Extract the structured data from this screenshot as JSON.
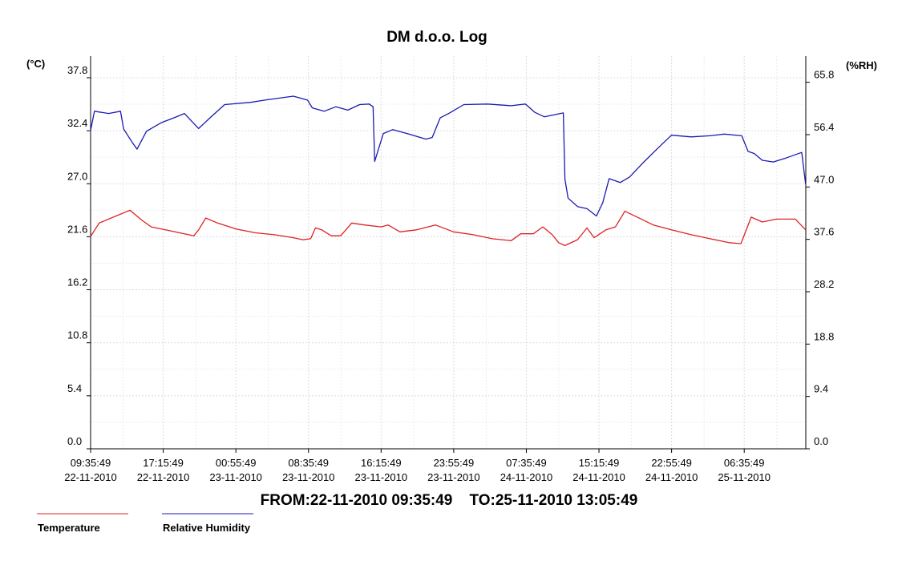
{
  "chart_data": {
    "type": "line",
    "title": "DM d.o.o. Log",
    "y_left_unit": "(°C)",
    "y_right_unit": "(%RH)",
    "ylim_left": [
      0.0,
      40.0
    ],
    "ylim_right": [
      0.0,
      70.5
    ],
    "y_left_ticks": [
      "0.0",
      "5.4",
      "10.8",
      "16.2",
      "21.6",
      "27.0",
      "32.4",
      "37.8"
    ],
    "y_right_ticks": [
      "0.0",
      "9.4",
      "18.8",
      "28.2",
      "37.6",
      "47.0",
      "56.4",
      "65.8"
    ],
    "x_range": [
      "22-11-2010 09:35:49",
      "25-11-2010 13:05:49"
    ],
    "x_ticks": [
      {
        "time": "09:35:49",
        "date": "22-11-2010"
      },
      {
        "time": "17:15:49",
        "date": "22-11-2010"
      },
      {
        "time": "00:55:49",
        "date": "23-11-2010"
      },
      {
        "time": "08:35:49",
        "date": "23-11-2010"
      },
      {
        "time": "16:15:49",
        "date": "23-11-2010"
      },
      {
        "time": "23:55:49",
        "date": "23-11-2010"
      },
      {
        "time": "07:35:49",
        "date": "24-11-2010"
      },
      {
        "time": "15:15:49",
        "date": "24-11-2010"
      },
      {
        "time": "22:55:49",
        "date": "24-11-2010"
      },
      {
        "time": "06:35:49",
        "date": "25-11-2010"
      }
    ],
    "grid": true,
    "range_text": "FROM:22-11-2010 09:35:49    TO:25-11-2010 13:05:49",
    "series": [
      {
        "name": "Temperature",
        "axis": "left",
        "color": "#dd2222",
        "points": [
          [
            "22-11-2010 09:35",
            21.6
          ],
          [
            "22-11-2010 10:30",
            23.0
          ],
          [
            "22-11-2010 12:00",
            23.6
          ],
          [
            "22-11-2010 13:45",
            24.3
          ],
          [
            "22-11-2010 15:00",
            23.3
          ],
          [
            "22-11-2010 16:00",
            22.6
          ],
          [
            "22-11-2010 17:30",
            22.3
          ],
          [
            "22-11-2010 19:00",
            22.0
          ],
          [
            "22-11-2010 20:30",
            21.7
          ],
          [
            "22-11-2010 21:00",
            22.3
          ],
          [
            "22-11-2010 21:45",
            23.5
          ],
          [
            "22-11-2010 23:00",
            23.0
          ],
          [
            "23-11-2010 00:55",
            22.4
          ],
          [
            "23-11-2010 03:00",
            22.0
          ],
          [
            "23-11-2010 05:00",
            21.8
          ],
          [
            "23-11-2010 07:00",
            21.5
          ],
          [
            "23-11-2010 08:00",
            21.3
          ],
          [
            "23-11-2010 08:50",
            21.4
          ],
          [
            "23-11-2010 09:20",
            22.5
          ],
          [
            "23-11-2010 10:00",
            22.3
          ],
          [
            "23-11-2010 11:00",
            21.7
          ],
          [
            "23-11-2010 12:00",
            21.7
          ],
          [
            "23-11-2010 13:10",
            23.0
          ],
          [
            "23-11-2010 14:30",
            22.8
          ],
          [
            "23-11-2010 16:15",
            22.6
          ],
          [
            "23-11-2010 17:00",
            22.8
          ],
          [
            "23-11-2010 18:15",
            22.1
          ],
          [
            "23-11-2010 20:00",
            22.3
          ],
          [
            "23-11-2010 22:00",
            22.8
          ],
          [
            "23-11-2010 23:55",
            22.1
          ],
          [
            "24-11-2010 02:00",
            21.8
          ],
          [
            "24-11-2010 04:00",
            21.4
          ],
          [
            "24-11-2010 06:00",
            21.2
          ],
          [
            "24-11-2010 07:00",
            21.9
          ],
          [
            "24-11-2010 08:20",
            21.9
          ],
          [
            "24-11-2010 09:20",
            22.6
          ],
          [
            "24-11-2010 10:20",
            21.8
          ],
          [
            "24-11-2010 11:00",
            21.0
          ],
          [
            "24-11-2010 11:40",
            20.7
          ],
          [
            "24-11-2010 13:00",
            21.3
          ],
          [
            "24-11-2010 14:00",
            22.5
          ],
          [
            "24-11-2010 14:45",
            21.5
          ],
          [
            "24-11-2010 16:00",
            22.3
          ],
          [
            "24-11-2010 17:00",
            22.6
          ],
          [
            "24-11-2010 18:00",
            24.2
          ],
          [
            "24-11-2010 19:30",
            23.5
          ],
          [
            "24-11-2010 21:00",
            22.8
          ],
          [
            "24-11-2010 22:55",
            22.3
          ],
          [
            "25-11-2010 01:00",
            21.8
          ],
          [
            "25-11-2010 03:00",
            21.4
          ],
          [
            "25-11-2010 05:00",
            21.0
          ],
          [
            "25-11-2010 06:15",
            20.9
          ],
          [
            "25-11-2010 07:20",
            23.6
          ],
          [
            "25-11-2010 08:30",
            23.1
          ],
          [
            "25-11-2010 10:00",
            23.4
          ],
          [
            "25-11-2010 12:00",
            23.4
          ],
          [
            "25-11-2010 13:05",
            22.3
          ]
        ]
      },
      {
        "name": "Relative Humidity",
        "axis": "right",
        "color": "#1a1ab3",
        "points": [
          [
            "22-11-2010 09:35",
            57.0
          ],
          [
            "22-11-2010 10:00",
            60.6
          ],
          [
            "22-11-2010 11:30",
            60.2
          ],
          [
            "22-11-2010 12:45",
            60.6
          ],
          [
            "22-11-2010 13:05",
            57.4
          ],
          [
            "22-11-2010 14:00",
            55.0
          ],
          [
            "22-11-2010 14:30",
            53.8
          ],
          [
            "22-11-2010 15:30",
            57.0
          ],
          [
            "22-11-2010 17:00",
            58.5
          ],
          [
            "22-11-2010 18:30",
            59.5
          ],
          [
            "22-11-2010 19:30",
            60.2
          ],
          [
            "22-11-2010 21:00",
            57.5
          ],
          [
            "22-11-2010 22:15",
            59.5
          ],
          [
            "22-11-2010 23:45",
            61.8
          ],
          [
            "23-11-2010 02:30",
            62.2
          ],
          [
            "23-11-2010 04:00",
            62.6
          ],
          [
            "23-11-2010 07:00",
            63.3
          ],
          [
            "23-11-2010 08:30",
            62.6
          ],
          [
            "23-11-2010 09:00",
            61.2
          ],
          [
            "23-11-2010 10:15",
            60.6
          ],
          [
            "23-11-2010 11:30",
            61.4
          ],
          [
            "23-11-2010 12:45",
            60.8
          ],
          [
            "23-11-2010 14:00",
            61.8
          ],
          [
            "23-11-2010 15:00",
            61.9
          ],
          [
            "23-11-2010 15:25",
            61.4
          ],
          [
            "23-11-2010 15:35",
            51.6
          ],
          [
            "23-11-2010 16:30",
            56.6
          ],
          [
            "23-11-2010 17:30",
            57.3
          ],
          [
            "23-11-2010 19:00",
            56.6
          ],
          [
            "23-11-2010 21:00",
            55.6
          ],
          [
            "23-11-2010 21:40",
            55.9
          ],
          [
            "23-11-2010 22:30",
            59.4
          ],
          [
            "23-11-2010 23:30",
            60.3
          ],
          [
            "24-11-2010 01:00",
            61.8
          ],
          [
            "24-11-2010 03:30",
            61.9
          ],
          [
            "24-11-2010 06:00",
            61.6
          ],
          [
            "24-11-2010 07:30",
            61.9
          ],
          [
            "24-11-2010 08:30",
            60.4
          ],
          [
            "24-11-2010 09:30",
            59.6
          ],
          [
            "24-11-2010 11:30",
            60.3
          ],
          [
            "24-11-2010 11:40",
            48.4
          ],
          [
            "24-11-2010 12:00",
            45.0
          ],
          [
            "24-11-2010 13:00",
            43.5
          ],
          [
            "24-11-2010 14:00",
            43.1
          ],
          [
            "24-11-2010 15:00",
            41.8
          ],
          [
            "24-11-2010 15:40",
            44.2
          ],
          [
            "24-11-2010 16:20",
            48.5
          ],
          [
            "24-11-2010 17:30",
            47.8
          ],
          [
            "24-11-2010 18:30",
            48.8
          ],
          [
            "24-11-2010 20:00",
            51.5
          ],
          [
            "24-11-2010 21:30",
            54.0
          ],
          [
            "24-11-2010 22:55",
            56.3
          ],
          [
            "25-11-2010 01:00",
            56.0
          ],
          [
            "25-11-2010 03:00",
            56.2
          ],
          [
            "25-11-2010 04:30",
            56.5
          ],
          [
            "25-11-2010 06:20",
            56.2
          ],
          [
            "25-11-2010 07:00",
            53.4
          ],
          [
            "25-11-2010 07:40",
            53.0
          ],
          [
            "25-11-2010 08:30",
            51.8
          ],
          [
            "25-11-2010 09:40",
            51.5
          ],
          [
            "25-11-2010 11:00",
            52.2
          ],
          [
            "25-11-2010 12:40",
            53.2
          ],
          [
            "25-11-2010 13:05",
            47.5
          ]
        ]
      }
    ]
  }
}
